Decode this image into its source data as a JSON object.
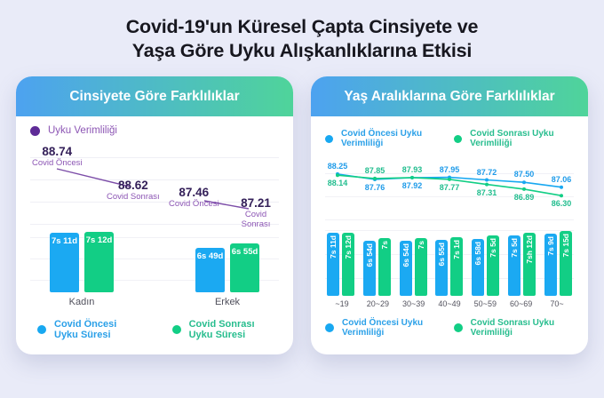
{
  "page": {
    "title_line1": "Covid-19'un Küresel Çapta Cinsiyete ve",
    "title_line2": "Yaşa Göre Uyku Alışkanlıklarına Etkisi"
  },
  "colors": {
    "blue": "#18A8F1",
    "green": "#12CE85",
    "blue_text": "#1E9BE9",
    "green_text": "#21BD8E",
    "purple_dot": "#5E2B97",
    "purple_text": "#8C55B4",
    "annotation_value_text": "#342059",
    "header_gradient_start": "#4DA2F0",
    "header_gradient_end": "#4FD49A"
  },
  "gender_card": {
    "header": "Cinsiyete Göre Farklılıklar",
    "efficiency_legend": "Uyku Verimliliği",
    "annotations": [
      {
        "value": "88.74",
        "label": "Covid Öncesi"
      },
      {
        "value": "88.62",
        "label": "Covid Sonrası"
      },
      {
        "value": "87.46",
        "label": "Covid Öncesi"
      },
      {
        "value": "87.21",
        "label": "Covid Sonrası"
      }
    ],
    "legend": [
      {
        "label": "Covid Öncesi Uyku Süresi"
      },
      {
        "label": "Covid Sonrası Uyku Süresi"
      }
    ]
  },
  "age_card": {
    "header": "Yaş Aralıklarına Göre Farklılıklar",
    "top_legend": [
      {
        "label": "Covid Öncesi Uyku Verimliliği"
      },
      {
        "label": "Covid Sonrası Uyku Verimliliği"
      }
    ],
    "bottom_legend": [
      {
        "label": "Covid Öncesi Uyku Verimliliği"
      },
      {
        "label": "Covid Sonrası Uyku Verimliliği"
      }
    ]
  },
  "chart_data": [
    {
      "id": "gender_efficiency",
      "type": "line",
      "title": "Cinsiyete Göre Uyku Verimliliği",
      "categories": [
        "Kadın",
        "Erkek"
      ],
      "series": [
        {
          "name": "Covid Öncesi",
          "values": [
            88.74,
            87.46
          ]
        },
        {
          "name": "Covid Sonrası",
          "values": [
            88.62,
            87.21
          ]
        }
      ]
    },
    {
      "id": "gender_duration",
      "type": "bar",
      "title": "Cinsiyete Göre Uyku Süresi",
      "categories": [
        "Kadın",
        "Erkek"
      ],
      "series": [
        {
          "name": "Covid Öncesi Uyku Süresi",
          "labels": [
            "7s 11d",
            "6s 49d"
          ],
          "minutes": [
            431,
            409
          ]
        },
        {
          "name": "Covid Sonrası Uyku Süresi",
          "labels": [
            "7s 12d",
            "6s 55d"
          ],
          "minutes": [
            432,
            415
          ]
        }
      ]
    },
    {
      "id": "age_efficiency",
      "type": "line",
      "title": "Yaş Aralıklarına Göre Uyku Verimliliği",
      "categories": [
        "~19",
        "20~29",
        "30~39",
        "40~49",
        "50~59",
        "60~69",
        "70~"
      ],
      "series": [
        {
          "name": "Covid Öncesi Uyku Verimliliği",
          "values": [
            88.25,
            87.76,
            87.92,
            87.95,
            87.72,
            87.5,
            87.06
          ]
        },
        {
          "name": "Covid Sonrası Uyku Verimliliği",
          "values": [
            88.14,
            87.85,
            87.93,
            87.77,
            87.31,
            86.89,
            86.3
          ]
        }
      ],
      "ylim": [
        86.0,
        88.5
      ],
      "legend_position": "top-and-bottom"
    },
    {
      "id": "age_duration",
      "type": "bar",
      "title": "Yaş Aralıklarına Göre Uyku Süresi",
      "categories": [
        "~19",
        "20~29",
        "30~39",
        "40~49",
        "50~59",
        "60~69",
        "70~"
      ],
      "series": [
        {
          "name": "Covid Öncesi",
          "labels": [
            "7s 11d",
            "6s 54d",
            "6s 54d",
            "6s 55d",
            "6s 58d",
            "7s 5d",
            "7s 9d"
          ],
          "minutes": [
            431,
            414,
            414,
            415,
            418,
            425,
            429
          ]
        },
        {
          "name": "Covid Sonrası",
          "labels": [
            "7s 12d",
            "7s",
            "7s",
            "7s 1d",
            "7s 5d",
            "7sh 12d",
            "7s 15d"
          ],
          "minutes": [
            432,
            420,
            420,
            421,
            425,
            432,
            435
          ]
        }
      ]
    }
  ]
}
